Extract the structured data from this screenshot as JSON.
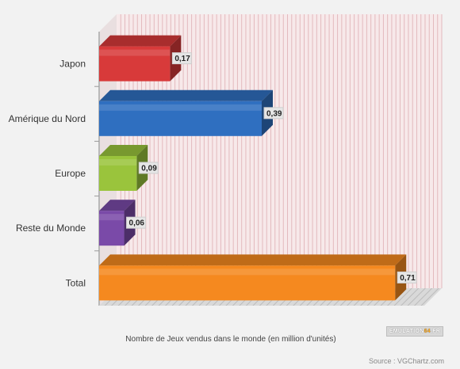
{
  "chart_data": {
    "type": "bar",
    "orientation": "horizontal",
    "categories": [
      "Japon",
      "Amérique du Nord",
      "Europe",
      "Reste du Monde",
      "Total"
    ],
    "values": [
      0.17,
      0.39,
      0.09,
      0.06,
      0.71
    ],
    "value_labels": [
      "0,17",
      "0,39",
      "0,09",
      "0,06",
      "0,71"
    ],
    "xlabel": "Nombre de Jeux vendus dans le monde (en million d'unités)",
    "xlim": [
      0,
      0.78
    ],
    "grid": "vertical",
    "legend": "none",
    "colors": [
      "#d83a3a",
      "#2f6fc0",
      "#9ac43c",
      "#7a4aa8",
      "#f5891f"
    ]
  },
  "source_text": "Source : VGChartz.com",
  "logo": {
    "main": "EMULATION",
    "accent": "64",
    "suffix": ".FR"
  }
}
